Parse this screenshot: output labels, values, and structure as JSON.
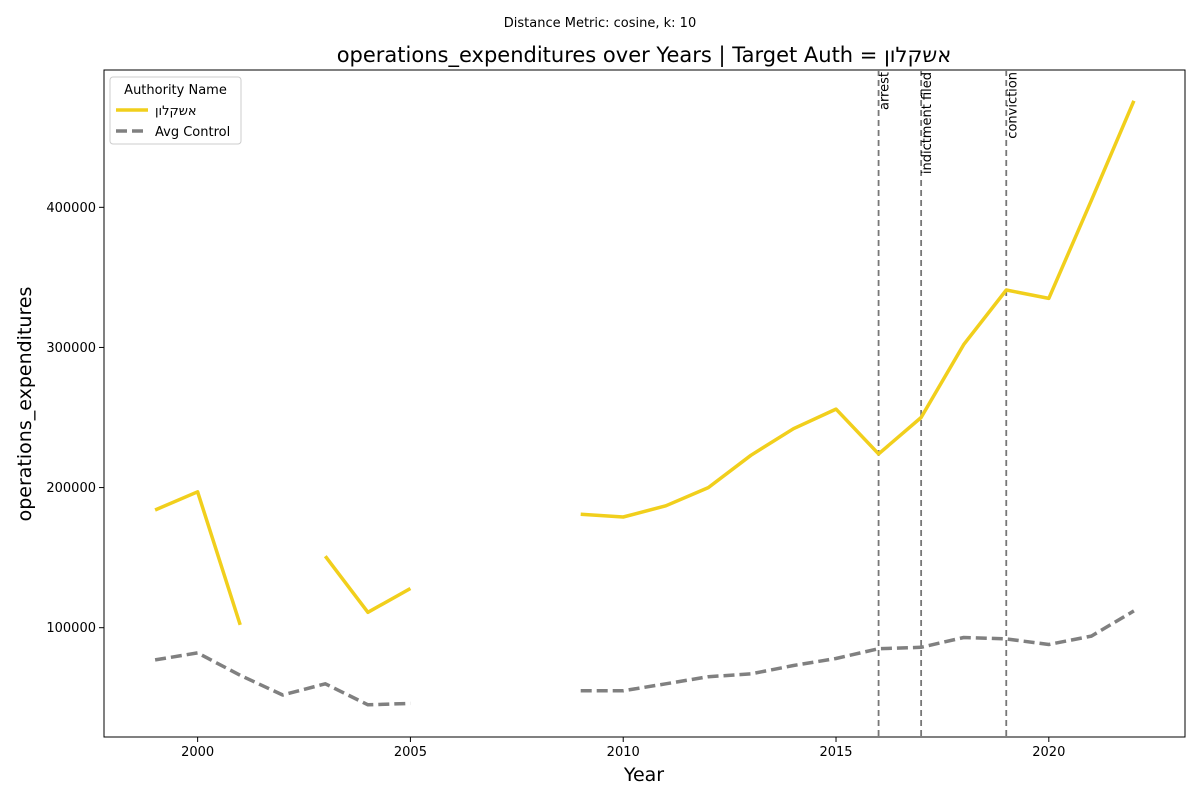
{
  "chart_data": {
    "type": "line",
    "suptitle": "Distance Metric: cosine, k: 10",
    "title": "operations_expenditures over Years | Target Auth = אשקלון",
    "xlabel": "Year",
    "ylabel": "operations_expenditures",
    "xlim": [
      1997.8,
      2023.2
    ],
    "ylim": [
      22000,
      498000
    ],
    "xticks": [
      2000,
      2005,
      2010,
      2015,
      2020
    ],
    "yticks": [
      100000,
      200000,
      300000,
      400000
    ],
    "grid": false,
    "legend": {
      "title": "Authority Name",
      "placement": "upper-left"
    },
    "series": [
      {
        "name": "אשקלון",
        "color": "#f1cf1c",
        "style": "solid",
        "points": [
          [
            1999,
            184000
          ],
          [
            2000,
            197000
          ],
          [
            2001,
            102000
          ],
          [
            2002,
            null
          ],
          [
            2003,
            151000
          ],
          [
            2004,
            111000
          ],
          [
            2005,
            128000
          ],
          [
            2006,
            null
          ],
          [
            2007,
            null
          ],
          [
            2008,
            null
          ],
          [
            2009,
            181000
          ],
          [
            2010,
            179000
          ],
          [
            2011,
            187000
          ],
          [
            2012,
            200000
          ],
          [
            2013,
            223000
          ],
          [
            2014,
            242000
          ],
          [
            2015,
            256000
          ],
          [
            2016,
            224000
          ],
          [
            2017,
            250000
          ],
          [
            2018,
            302000
          ],
          [
            2019,
            341000
          ],
          [
            2020,
            335000
          ],
          [
            2021,
            405000
          ],
          [
            2022,
            476000
          ]
        ]
      },
      {
        "name": "Avg Control",
        "color": "#808080",
        "style": "dashed",
        "points": [
          [
            1999,
            77000
          ],
          [
            2000,
            82000
          ],
          [
            2001,
            66000
          ],
          [
            2002,
            52000
          ],
          [
            2003,
            60000
          ],
          [
            2004,
            45000
          ],
          [
            2005,
            46000
          ],
          [
            2006,
            null
          ],
          [
            2007,
            null
          ],
          [
            2008,
            null
          ],
          [
            2009,
            55000
          ],
          [
            2010,
            55000
          ],
          [
            2011,
            60000
          ],
          [
            2012,
            65000
          ],
          [
            2013,
            67000
          ],
          [
            2014,
            73000
          ],
          [
            2015,
            78000
          ],
          [
            2016,
            85000
          ],
          [
            2017,
            86000
          ],
          [
            2018,
            93000
          ],
          [
            2019,
            92000
          ],
          [
            2020,
            88000
          ],
          [
            2021,
            94000
          ],
          [
            2022,
            112000
          ]
        ]
      }
    ],
    "events": [
      {
        "x": 2016,
        "label": "arrest"
      },
      {
        "x": 2017,
        "label": "indictment filed"
      },
      {
        "x": 2019,
        "label": "conviction"
      }
    ]
  }
}
